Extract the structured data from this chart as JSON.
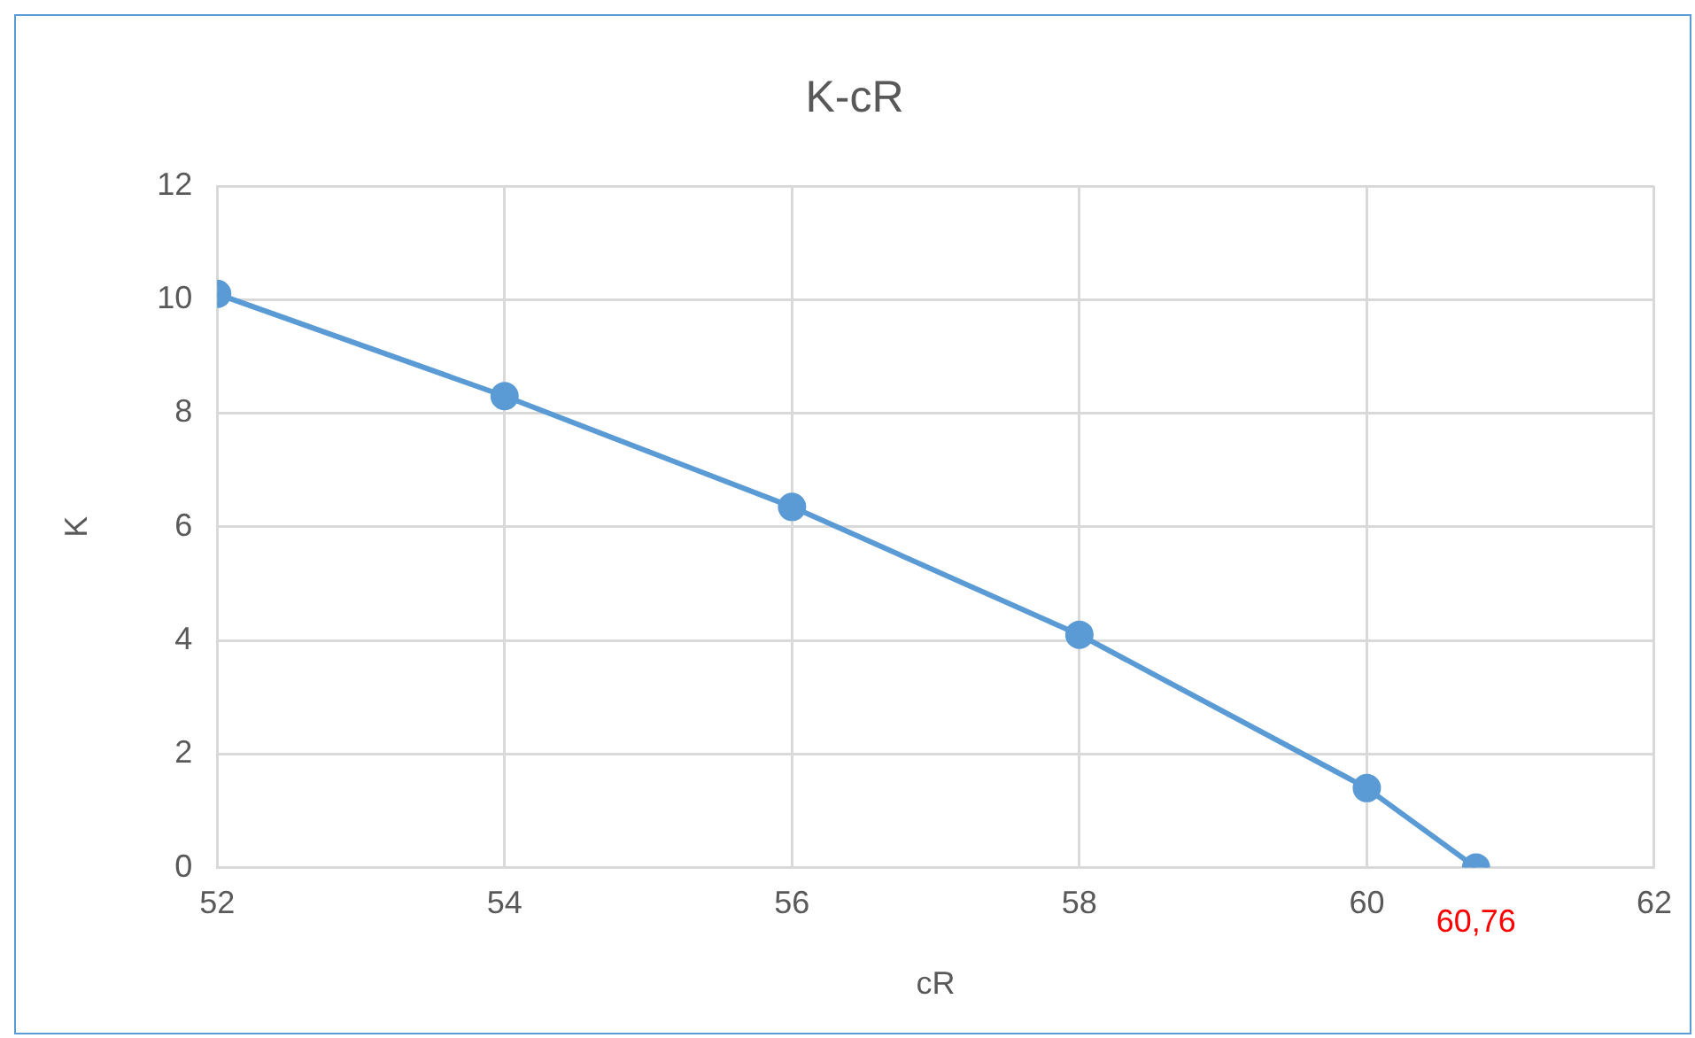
{
  "chart_data": {
    "type": "line",
    "title": "K-cR",
    "xlabel": "cR",
    "ylabel": "K",
    "x": [
      52,
      54,
      56,
      58,
      60,
      60.76
    ],
    "series": [
      {
        "color": "#5b9bd5",
        "values": [
          10.1,
          8.3,
          6.35,
          4.1,
          1.4,
          0
        ]
      }
    ],
    "xlim": [
      52,
      62
    ],
    "xticks": [
      52,
      54,
      56,
      58,
      60,
      62
    ],
    "ylim": [
      0,
      12
    ],
    "yticks": [
      0,
      2,
      4,
      6,
      8,
      10,
      12
    ],
    "grid": true,
    "legend": false,
    "marker": "circle",
    "line_style": "solid",
    "annotations": [
      {
        "text": "60,76",
        "x": 60.76,
        "y": 0
      }
    ]
  }
}
